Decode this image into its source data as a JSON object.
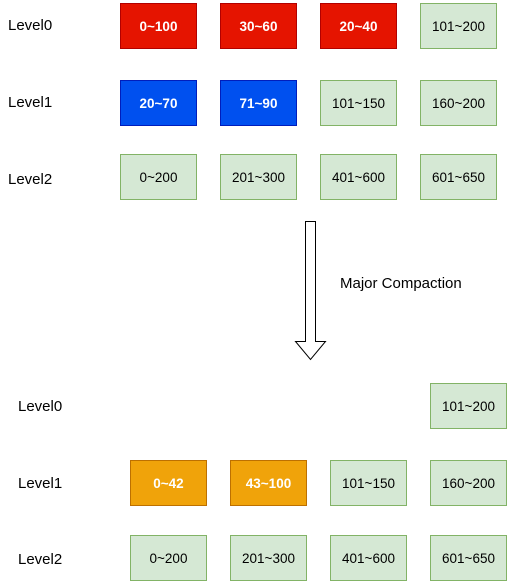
{
  "before": {
    "rows": [
      {
        "label": "Level0",
        "boxes": [
          {
            "text": "0~100",
            "kind": "red"
          },
          {
            "text": "30~60",
            "kind": "red"
          },
          {
            "text": "20~40",
            "kind": "red"
          },
          {
            "text": "101~200",
            "kind": "green"
          }
        ]
      },
      {
        "label": "Level1",
        "boxes": [
          {
            "text": "20~70",
            "kind": "blue"
          },
          {
            "text": "71~90",
            "kind": "blue"
          },
          {
            "text": "101~150",
            "kind": "green"
          },
          {
            "text": "160~200",
            "kind": "green"
          }
        ]
      },
      {
        "label": "Level2",
        "boxes": [
          {
            "text": "0~200",
            "kind": "green"
          },
          {
            "text": "201~300",
            "kind": "green"
          },
          {
            "text": "401~600",
            "kind": "green"
          },
          {
            "text": "601~650",
            "kind": "green"
          }
        ]
      }
    ]
  },
  "arrow_label": "Major Compaction",
  "after": {
    "rows": [
      {
        "label": "Level0",
        "boxes": [
          {
            "text": "101~200",
            "kind": "green"
          }
        ]
      },
      {
        "label": "Level1",
        "boxes": [
          {
            "text": "0~42",
            "kind": "orange"
          },
          {
            "text": "43~100",
            "kind": "orange"
          },
          {
            "text": "101~150",
            "kind": "green"
          },
          {
            "text": "160~200",
            "kind": "green"
          }
        ]
      },
      {
        "label": "Level2",
        "boxes": [
          {
            "text": "0~200",
            "kind": "green"
          },
          {
            "text": "201~300",
            "kind": "green"
          },
          {
            "text": "401~600",
            "kind": "green"
          },
          {
            "text": "601~650",
            "kind": "green"
          }
        ]
      }
    ]
  },
  "colors": {
    "red_fill": "#e51400",
    "blue_fill": "#0050ef",
    "orange_fill": "#f0a30a",
    "green_fill": "#d5e8d4",
    "green_stroke": "#82b366"
  }
}
